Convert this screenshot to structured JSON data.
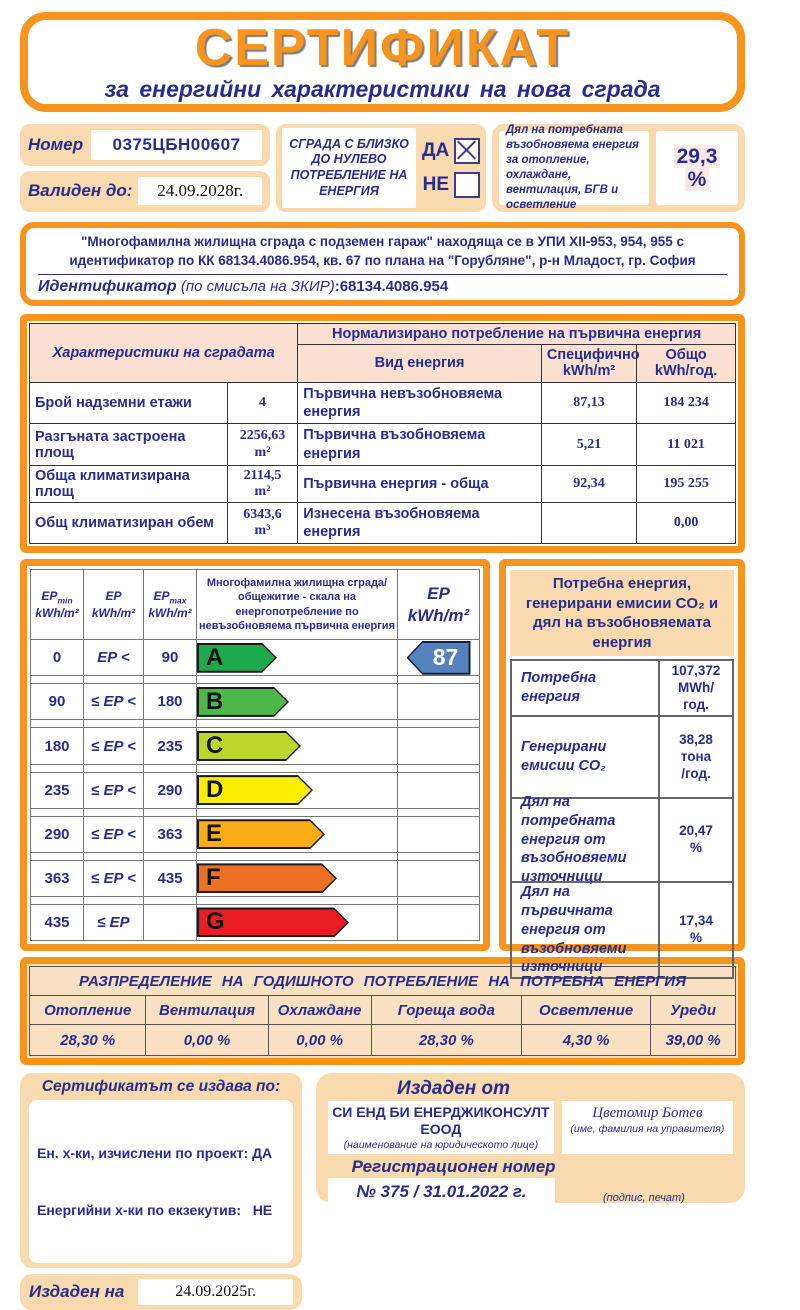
{
  "certificate": {
    "title": "СЕРТИФИКАТ",
    "subtitle": "за енергийни характеристики на нова сграда"
  },
  "header": {
    "number_label": "Номер",
    "number_value": "0375ЦБН00607",
    "valid_until_label": "Валиден до:",
    "valid_until_value": "24.09.2028г.",
    "nzeb_label": "СГРАДА С БЛИЗКО ДО НУЛЕВО ПОТРЕБЛЕНИЕ НА ЕНЕРГИЯ",
    "nzeb_yes_label": "ДА",
    "nzeb_no_label": "НЕ",
    "nzeb_answer": "ДА",
    "res_share_label": "Дял на потребната възобновяема енергия за отопление, охлаждане, вентилация, БГВ и осветление",
    "res_share_value": "29,3",
    "res_share_unit": "%"
  },
  "building": {
    "description": "\"Многофамилна жилищна сграда с подземен гараж\" находяща се в УПИ XII-953, 954, 955 с идентификатор по КК 68134.4086.954, кв. 67 по плана на \"Горубляне\", р-н Младост, гр. София",
    "identifier_label": "Идентификатор",
    "identifier_note": "(по смисъла на ЗКИР)",
    "identifier_value": ":68134.4086.954"
  },
  "characteristics": {
    "left_header": "Характеристики на сградата",
    "right_header": "Нормализирано потребление на първична енергия",
    "type_header": "Вид енергия",
    "specific_header": "Специфично",
    "specific_unit": "kWh/m²",
    "total_header": "Общо",
    "total_unit": "kWh/год.",
    "rows": [
      {
        "label": "Брой надземни етажи",
        "value": "4",
        "unit": "",
        "energy": "Първична невъзобновяема енергия",
        "specific": "87,13",
        "total": "184 234"
      },
      {
        "label": "Разгъната застроена площ",
        "value": "2256,63",
        "unit": "m²",
        "energy": "Първична възобновяема енергия",
        "specific": "5,21",
        "total": "11 021"
      },
      {
        "label": "Обща климатизирана площ",
        "value": "2114,5",
        "unit": "m²",
        "energy": "Първична енергия - обща",
        "specific": "92,34",
        "total": "195 255"
      },
      {
        "label": "Общ климатизиран обем",
        "value": "6343,6",
        "unit": "m³",
        "energy": "Изнесена възобновяема енергия",
        "specific": "",
        "total": "0,00"
      }
    ]
  },
  "scale": {
    "min_header": {
      "base": "EP",
      "sub": "min",
      "unit": "kWh/m²"
    },
    "mid_header": {
      "base": "EP",
      "sub": "",
      "unit": "kWh/m²"
    },
    "max_header": {
      "base": "EP",
      "sub": "max",
      "unit": "kWh/m²"
    },
    "scale_header": "Многофамилна жилищна сграда/общежитие - скала на енергопотребление по невъзобновяема първична енергия",
    "ep_header": {
      "base": "EP",
      "unit": "kWh/m²"
    },
    "rows": [
      {
        "min": "0",
        "op": "EP <",
        "max": "90",
        "class": "A",
        "color": "#1EA94C",
        "width_pct": 40
      },
      {
        "min": "90",
        "op": "≤ EP <",
        "max": "180",
        "class": "B",
        "color": "#4DB848",
        "width_pct": 46
      },
      {
        "min": "180",
        "op": "≤ EP <",
        "max": "235",
        "class": "C",
        "color": "#BDD62E",
        "width_pct": 52
      },
      {
        "min": "235",
        "op": "≤ EP <",
        "max": "290",
        "class": "D",
        "color": "#FBEE00",
        "width_pct": 58
      },
      {
        "min": "290",
        "op": "≤ EP <",
        "max": "363",
        "class": "E",
        "color": "#FAAD18",
        "width_pct": 64
      },
      {
        "min": "363",
        "op": "≤ EP <",
        "max": "435",
        "class": "F",
        "color": "#EE7023",
        "width_pct": 70
      },
      {
        "min": "435",
        "op": "≤ EP",
        "max": "",
        "class": "G",
        "color": "#EA1C24",
        "width_pct": 76
      }
    ],
    "ep_value": "87",
    "ep_value_row": "A",
    "ep_arrow_color": "#5581BD"
  },
  "demand": {
    "title": "Потребна енергия, генерирани емисии CO₂ и дял на възобновяемата енергия",
    "rows": [
      {
        "label": "Потребна енергия",
        "value": "107,372\nMWh/\nгод."
      },
      {
        "label": "Генерирани\nемисии CO₂",
        "value": "38,28\nтона\n/год."
      },
      {
        "label": "Дял на потребната\nенергия от\nвъзобновяеми\nизточници",
        "value": "20,47\n%"
      },
      {
        "label": "Дял на първичната\nенергия от\nвъзобновяеми\nизточници",
        "value": "17,34\n%"
      }
    ]
  },
  "distribution": {
    "title": "РАЗПРЕДЕЛЕНИЕ НА ГОДИШНОТО ПОТРЕБЛЕНИЕ НА ПОТРЕБНА ЕНЕРГИЯ",
    "columns": [
      {
        "label": "Отопление",
        "value": "28,30 %"
      },
      {
        "label": "Вентилация",
        "value": "0,00 %"
      },
      {
        "label": "Охлаждане",
        "value": "0,00 %"
      },
      {
        "label": "Гореща вода",
        "value": "28,30 %"
      },
      {
        "label": "Осветление",
        "value": "4,30 %"
      },
      {
        "label": "Уреди",
        "value": "39,00 %"
      }
    ]
  },
  "footer": {
    "basis_title": "Сертификатът се издава по:",
    "basis_line1": "Ен. х-ки, изчислени по проект: ДА",
    "basis_line2": "Енергийни х-ки по екзекутив:   НЕ",
    "issued_on_label": "Издаден на",
    "issued_on_value": "24.09.2025г.",
    "issued_by_title": "Издаден от",
    "company_name": "СИ ЕНД БИ ЕНЕРДЖИКОНСУЛТ ЕООД",
    "company_note": "(наименование на юридическото лице)",
    "manager_name": "Цветомир Ботев",
    "manager_note": "(име, фамилия на управителя)",
    "registration_label": "Регистрационен номер",
    "registration_value": "№ 375 / 31.01.2022 г.",
    "signature_note": "(подпис, печат)"
  },
  "colors": {
    "accent_orange": "#F7941D",
    "peach_fill": "#F9D9AE",
    "table_header_pink": "#FBE0D2",
    "navy_text": "#272C8E"
  }
}
